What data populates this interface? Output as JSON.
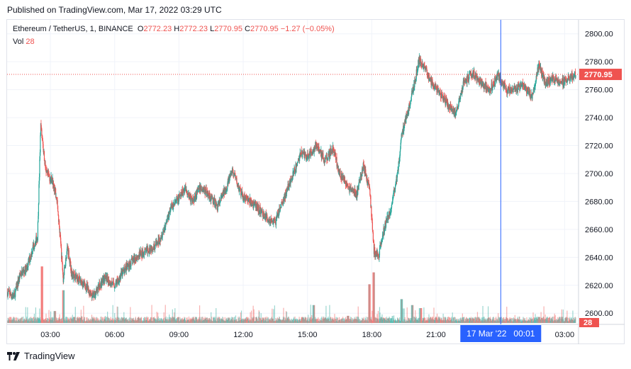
{
  "header": {
    "published": "Published on TradingView.com, Mar 17, 2022 03:29 UTC"
  },
  "legend": {
    "symbol": "Ethereum / TetherUS, 1, BINANCE",
    "o_label": "O",
    "o_value": "2772.23",
    "h_label": "H",
    "h_value": "2772.23",
    "l_label": "L",
    "l_value": "2770.95",
    "c_label": "C",
    "c_value": "2770.95",
    "change": "−1.27 (−0.05%)",
    "vol_label": "Vol",
    "vol_value": "28"
  },
  "footer": {
    "brand": "TradingView"
  },
  "colors": {
    "up": "#26a69a",
    "down": "#ef5350",
    "crosshair": "#2962ff",
    "grid": "#f0f3fa"
  },
  "chart_data": {
    "type": "candlestick",
    "y_ticks": [
      "2600.00",
      "2620.00",
      "2640.00",
      "2660.00",
      "2680.00",
      "2700.00",
      "2720.00",
      "2740.00",
      "2760.00",
      "2780.00",
      "2800.00"
    ],
    "ylim": [
      2592,
      2810
    ],
    "x_ticks": [
      "03:00",
      "06:00",
      "09:00",
      "12:00",
      "15:00",
      "18:00",
      "21:00",
      "03:00"
    ],
    "x_tick_hours": [
      3,
      6,
      9,
      12,
      15,
      18,
      21,
      27
    ],
    "xlim_hours": [
      0.98,
      27.65
    ],
    "last_price": "2770.95",
    "last_volume": "28",
    "crosshair_label": "17 Mar '22   00:01",
    "crosshair_hour": 24.02,
    "price_path": [
      [
        1.0,
        2615
      ],
      [
        1.3,
        2612
      ],
      [
        1.6,
        2628
      ],
      [
        1.9,
        2632
      ],
      [
        2.2,
        2648
      ],
      [
        2.4,
        2655
      ],
      [
        2.55,
        2734
      ],
      [
        2.8,
        2700
      ],
      [
        3.1,
        2695
      ],
      [
        3.3,
        2682
      ],
      [
        3.45,
        2655
      ],
      [
        3.6,
        2625
      ],
      [
        3.8,
        2648
      ],
      [
        4.0,
        2628
      ],
      [
        4.3,
        2625
      ],
      [
        4.6,
        2620
      ],
      [
        5.0,
        2612
      ],
      [
        5.5,
        2625
      ],
      [
        6.0,
        2620
      ],
      [
        6.5,
        2632
      ],
      [
        7.0,
        2640
      ],
      [
        7.5,
        2645
      ],
      [
        8.0,
        2650
      ],
      [
        8.3,
        2660
      ],
      [
        8.6,
        2675
      ],
      [
        9.0,
        2682
      ],
      [
        9.3,
        2690
      ],
      [
        9.6,
        2680
      ],
      [
        10.0,
        2690
      ],
      [
        10.4,
        2685
      ],
      [
        10.8,
        2676
      ],
      [
        11.2,
        2690
      ],
      [
        11.5,
        2702
      ],
      [
        11.9,
        2685
      ],
      [
        12.3,
        2680
      ],
      [
        12.7,
        2675
      ],
      [
        13.1,
        2668
      ],
      [
        13.5,
        2665
      ],
      [
        13.8,
        2678
      ],
      [
        14.1,
        2690
      ],
      [
        14.4,
        2702
      ],
      [
        14.7,
        2715
      ],
      [
        15.0,
        2712
      ],
      [
        15.4,
        2720
      ],
      [
        15.8,
        2710
      ],
      [
        16.2,
        2718
      ],
      [
        16.5,
        2700
      ],
      [
        16.9,
        2690
      ],
      [
        17.3,
        2685
      ],
      [
        17.6,
        2705
      ],
      [
        17.9,
        2690
      ],
      [
        18.1,
        2645
      ],
      [
        18.3,
        2640
      ],
      [
        18.6,
        2662
      ],
      [
        18.9,
        2675
      ],
      [
        19.2,
        2700
      ],
      [
        19.4,
        2728
      ],
      [
        19.6,
        2740
      ],
      [
        19.8,
        2752
      ],
      [
        20.0,
        2765
      ],
      [
        20.2,
        2782
      ],
      [
        20.5,
        2775
      ],
      [
        20.8,
        2765
      ],
      [
        21.1,
        2760
      ],
      [
        21.5,
        2750
      ],
      [
        21.9,
        2743
      ],
      [
        22.3,
        2765
      ],
      [
        22.7,
        2772
      ],
      [
        23.1,
        2765
      ],
      [
        23.5,
        2760
      ],
      [
        23.9,
        2770
      ],
      [
        24.3,
        2760
      ],
      [
        24.7,
        2760
      ],
      [
        25.1,
        2763
      ],
      [
        25.5,
        2755
      ],
      [
        25.8,
        2778
      ],
      [
        26.1,
        2765
      ],
      [
        26.5,
        2768
      ],
      [
        26.9,
        2765
      ],
      [
        27.3,
        2770
      ],
      [
        27.55,
        2770.95
      ]
    ],
    "volume_spikes": [
      [
        2.6,
        0.95
      ],
      [
        3.2,
        0.2
      ],
      [
        3.6,
        0.55
      ],
      [
        4.1,
        0.1
      ],
      [
        15.3,
        0.3
      ],
      [
        16.9,
        0.12
      ],
      [
        17.9,
        0.65
      ],
      [
        18.1,
        0.85
      ],
      [
        19.4,
        0.4
      ],
      [
        19.9,
        0.3
      ],
      [
        20.3,
        0.25
      ],
      [
        25.8,
        0.1
      ]
    ]
  }
}
